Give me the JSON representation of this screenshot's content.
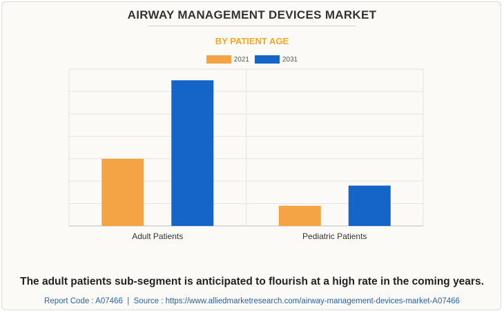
{
  "chart_data": {
    "type": "bar",
    "title": "AIRWAY MANAGEMENT DEVICES MARKET",
    "subtitle": "BY PATIENT AGE",
    "categories": [
      "Adult Patients",
      "Pediatric Patients"
    ],
    "series": [
      {
        "name": "2021",
        "color": "#f5a445",
        "values": [
          3.0,
          0.9
        ]
      },
      {
        "name": "2031",
        "color": "#1565c8",
        "values": [
          6.5,
          1.8
        ]
      }
    ],
    "ylim": [
      0,
      7
    ],
    "grid": true,
    "legend": "top-center",
    "xlabel": "",
    "ylabel": ""
  },
  "caption": "The adult patients sub-segment is anticipated to flourish at a high rate in the coming years.",
  "footer": {
    "report_code": "Report Code : A07466",
    "separator": "|",
    "source": "Source : https://www.alliedmarketresearch.com/airway-management-devices-market-A07466"
  }
}
